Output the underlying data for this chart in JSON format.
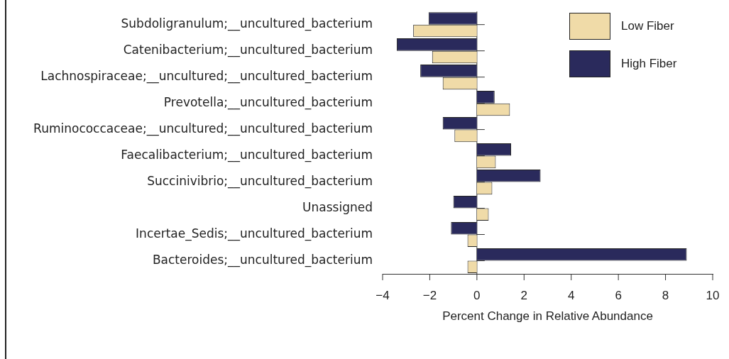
{
  "chart_data": {
    "type": "bar",
    "orientation": "horizontal",
    "xlabel": "Percent Change in Relative Abundance",
    "categories": [
      "Subdoligranulum;__uncultured_bacterium",
      "Catenibacterium;__uncultured_bacterium",
      "Lachnospiraceae;__uncultured;__uncultured_bacterium",
      "Prevotella;__uncultured_bacterium",
      "Ruminococcaceae;__uncultured;__uncultured_bacterium",
      "Faecalibacterium;__uncultured_bacterium",
      "Succinivibrio;__uncultured_bacterium",
      "Unassigned",
      "Incertae_Sedis;__uncultured_bacterium",
      "Bacteroides;__uncultured_bacterium"
    ],
    "series": [
      {
        "name": "Low Fiber",
        "color": "#f0dba8",
        "values": [
          -2.7,
          -1.9,
          -1.45,
          1.4,
          -0.95,
          0.8,
          0.65,
          0.5,
          -0.4,
          -0.4
        ]
      },
      {
        "name": "High Fiber",
        "color": "#2a2a5c",
        "values": [
          -2.05,
          -3.4,
          -2.4,
          0.75,
          -1.45,
          1.45,
          2.7,
          -1.0,
          -1.1,
          8.9
        ]
      }
    ],
    "xlim": [
      -4,
      10
    ],
    "xticks": [
      -4,
      -2,
      0,
      2,
      4,
      6,
      8,
      10
    ],
    "grid": false,
    "ref_lines": [
      {
        "axis": "x",
        "value": 0
      }
    ],
    "legend": "top right"
  }
}
